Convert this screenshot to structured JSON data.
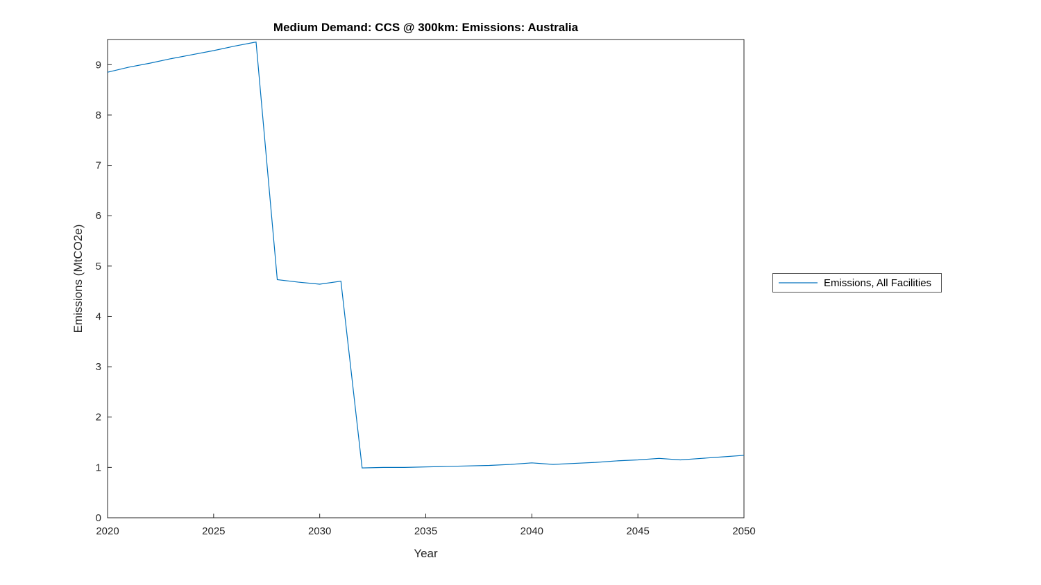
{
  "chart_data": {
    "type": "line",
    "title": "Medium Demand: CCS @ 300km: Emissions: Australia",
    "xlabel": "Year",
    "ylabel": "Emissions (MtCO2e)",
    "xlim": [
      2020,
      2050
    ],
    "ylim": [
      0,
      9.5
    ],
    "xticks": [
      2020,
      2025,
      2030,
      2035,
      2040,
      2045,
      2050
    ],
    "yticks": [
      0,
      1,
      2,
      3,
      4,
      5,
      6,
      7,
      8,
      9
    ],
    "grid": false,
    "legend_position": "right-outside",
    "x": [
      2020,
      2021,
      2022,
      2023,
      2024,
      2025,
      2026,
      2027,
      2028,
      2029,
      2030,
      2031,
      2032,
      2033,
      2034,
      2035,
      2036,
      2037,
      2038,
      2039,
      2040,
      2041,
      2042,
      2043,
      2044,
      2045,
      2046,
      2047,
      2048,
      2049,
      2050
    ],
    "series": [
      {
        "name": "Emissions, All Facilities",
        "color": "#0072BD",
        "values": [
          8.85,
          8.95,
          9.03,
          9.12,
          9.2,
          9.28,
          9.37,
          9.45,
          4.73,
          4.68,
          4.64,
          4.7,
          0.99,
          1.0,
          1.0,
          1.01,
          1.02,
          1.03,
          1.04,
          1.06,
          1.09,
          1.06,
          1.08,
          1.1,
          1.13,
          1.15,
          1.18,
          1.15,
          1.18,
          1.21,
          1.24
        ]
      }
    ]
  }
}
